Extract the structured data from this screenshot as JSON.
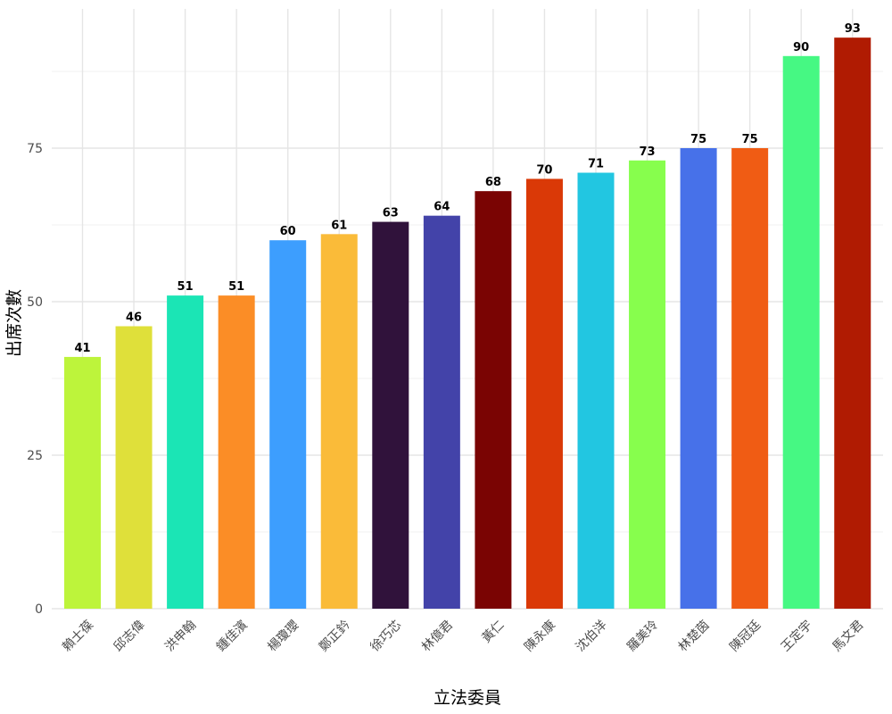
{
  "chart_data": {
    "type": "bar",
    "xlabel": "立法委員",
    "ylabel": "出席次數",
    "ylim": [
      0,
      95
    ],
    "yticks": [
      0,
      25,
      50,
      75
    ],
    "grid": true,
    "categories": [
      "賴士葆",
      "邱志偉",
      "洪申翰",
      "鍾佳濱",
      "楊瓊瓔",
      "鄭正鈐",
      "徐巧芯",
      "林億君",
      "黃仁",
      "陳永康",
      "沈伯洋",
      "羅美玲",
      "林楚茵",
      "陳冠廷",
      "王定宇",
      "馬文君"
    ],
    "values": [
      41,
      46,
      51,
      51,
      60,
      61,
      63,
      64,
      68,
      70,
      71,
      73,
      75,
      75,
      90,
      93
    ],
    "colors": [
      "#BDF43B",
      "#DFE03A",
      "#1BE5B5",
      "#FB8D26",
      "#3D9EFE",
      "#FABB39",
      "#30123B",
      "#4343A9",
      "#7A0403",
      "#DA3907",
      "#22C6E1",
      "#87FE4D",
      "#4771E9",
      "#F05C14",
      "#46F883",
      "#B01B02"
    ]
  }
}
